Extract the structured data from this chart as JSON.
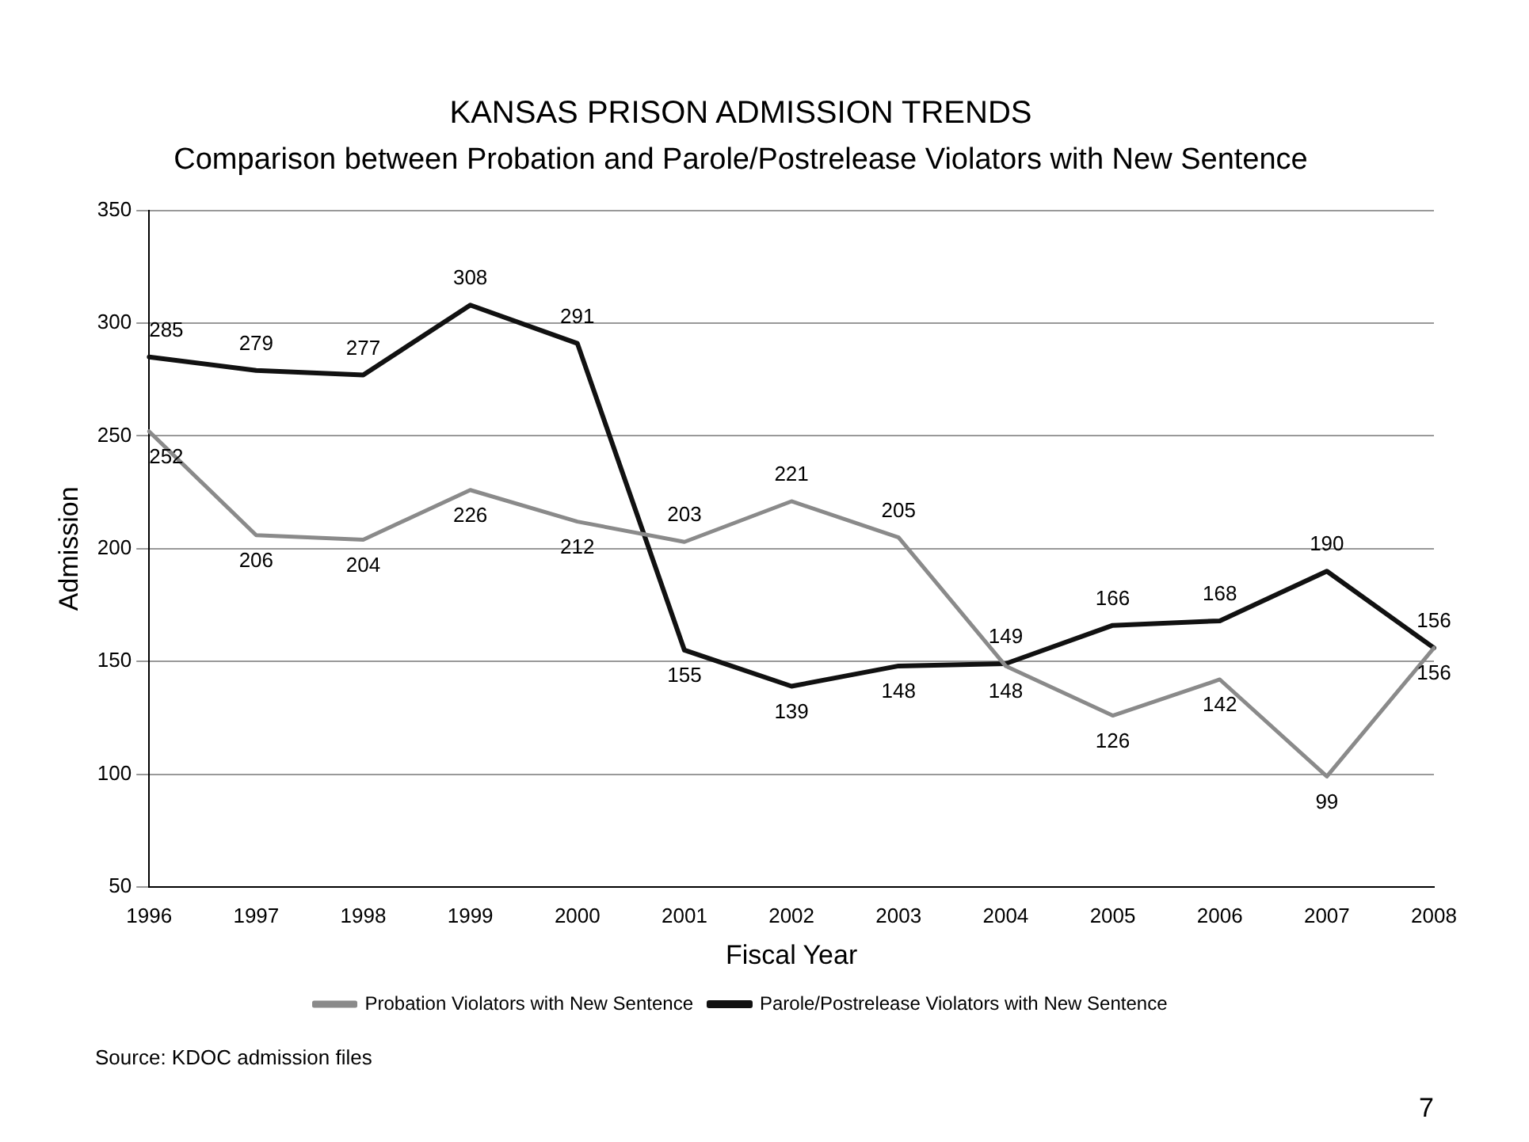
{
  "chart_data": {
    "type": "line",
    "title": "KANSAS PRISON ADMISSION TRENDS",
    "subtitle": "Comparison between Probation and Parole/Postrelease Violators with New Sentence",
    "xlabel": "Fiscal Year",
    "ylabel": "Admission",
    "categories": [
      "1996",
      "1997",
      "1998",
      "1999",
      "2000",
      "2001",
      "2002",
      "2003",
      "2004",
      "2005",
      "2006",
      "2007",
      "2008"
    ],
    "series": [
      {
        "name": "Probation Violators with New Sentence",
        "color": "#8a8a8a",
        "values": [
          252,
          206,
          204,
          226,
          212,
          203,
          221,
          205,
          148,
          126,
          142,
          99,
          156
        ]
      },
      {
        "name": "Parole/Postrelease Violators with New Sentence",
        "color": "#111111",
        "values": [
          285,
          279,
          277,
          308,
          291,
          155,
          139,
          148,
          149,
          166,
          168,
          190,
          156
        ]
      }
    ],
    "ylim": [
      50,
      350
    ],
    "yticks": [
      50,
      100,
      150,
      200,
      250,
      300,
      350
    ],
    "grid": "y",
    "legend": "bottom",
    "marker": "none",
    "line_style": "solid",
    "data_labels": true,
    "annotations": [
      "Source: KDOC admission files",
      "7"
    ]
  }
}
